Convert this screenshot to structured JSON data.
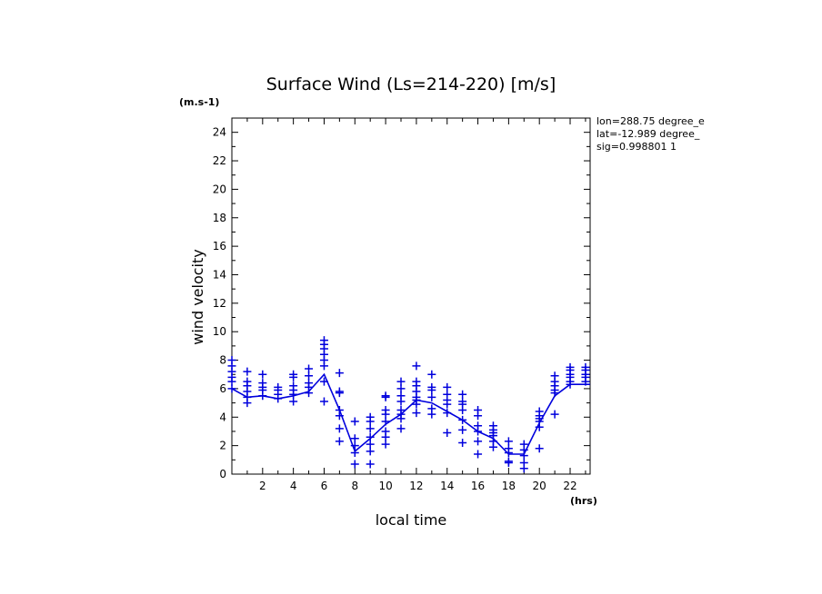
{
  "chart_data": {
    "type": "line",
    "title": "Surface Wind  (Ls=214-220) [m/s]",
    "ylabel": "wind velocity",
    "xlabel": "local time",
    "y_unit": "(m.s-1)",
    "x_unit": "(hrs)",
    "xlim": [
      0,
      23.3
    ],
    "ylim": [
      0,
      25
    ],
    "x_ticks": [
      2,
      4,
      6,
      8,
      10,
      12,
      14,
      16,
      18,
      20,
      22
    ],
    "y_ticks": [
      0,
      2,
      4,
      6,
      8,
      10,
      12,
      14,
      16,
      18,
      20,
      22,
      24
    ],
    "info_lines": [
      "lon=288.75 degree_e",
      "lat=-12.989 degree_",
      "sig=0.998801 1"
    ],
    "mean_series": {
      "x": [
        0,
        1,
        2,
        3,
        4,
        5,
        6,
        7,
        8,
        9,
        10,
        11,
        12,
        13,
        14,
        15,
        16,
        17,
        18,
        19,
        20,
        21,
        22,
        23.3
      ],
      "y": [
        6.0,
        5.4,
        5.5,
        5.3,
        5.5,
        5.8,
        7.0,
        4.5,
        1.6,
        2.5,
        3.5,
        4.2,
        5.2,
        5.0,
        4.4,
        3.8,
        3.0,
        2.5,
        1.4,
        1.4,
        3.6,
        5.5,
        6.3,
        6.3
      ]
    },
    "samples": [
      {
        "x": 0,
        "y": [
          6.0,
          6.5,
          6.8,
          7.2,
          7.6,
          8.0
        ]
      },
      {
        "x": 1,
        "y": [
          5.0,
          5.4,
          5.8,
          6.2,
          6.5,
          7.2
        ]
      },
      {
        "x": 2,
        "y": [
          5.5,
          5.9,
          6.1,
          6.4,
          7.0
        ]
      },
      {
        "x": 3,
        "y": [
          5.3,
          5.6,
          5.9,
          6.1
        ]
      },
      {
        "x": 4,
        "y": [
          5.1,
          5.6,
          5.9,
          6.2,
          6.8,
          7.0
        ]
      },
      {
        "x": 5,
        "y": [
          5.7,
          6.1,
          6.4,
          6.9,
          7.4
        ]
      },
      {
        "x": 6,
        "y": [
          5.1,
          6.5,
          7.6,
          8.0,
          8.4,
          8.8,
          9.1,
          9.4
        ]
      },
      {
        "x": 7,
        "y": [
          2.3,
          3.2,
          4.1,
          4.5,
          5.7,
          5.8,
          7.1
        ]
      },
      {
        "x": 8,
        "y": [
          0.7,
          1.5,
          2.0,
          2.5,
          3.7
        ]
      },
      {
        "x": 9,
        "y": [
          0.7,
          1.6,
          2.1,
          2.6,
          3.2,
          3.7,
          4.0
        ]
      },
      {
        "x": 10,
        "y": [
          2.1,
          2.6,
          3.0,
          3.7,
          4.2,
          4.5,
          5.4,
          5.5
        ]
      },
      {
        "x": 11,
        "y": [
          3.2,
          3.9,
          4.2,
          4.5,
          5.1,
          5.5,
          6.0,
          6.5
        ]
      },
      {
        "x": 12,
        "y": [
          4.3,
          4.9,
          5.2,
          5.4,
          5.8,
          6.2,
          6.5,
          7.6
        ]
      },
      {
        "x": 13,
        "y": [
          4.2,
          4.6,
          5.4,
          5.9,
          6.1,
          7.0
        ]
      },
      {
        "x": 14,
        "y": [
          2.9,
          4.3,
          4.9,
          5.2,
          5.6,
          6.1
        ]
      },
      {
        "x": 15,
        "y": [
          2.2,
          3.1,
          3.8,
          4.5,
          4.9,
          5.1,
          5.6
        ]
      },
      {
        "x": 16,
        "y": [
          1.4,
          2.3,
          3.0,
          3.4,
          4.1,
          4.5
        ]
      },
      {
        "x": 17,
        "y": [
          1.9,
          2.3,
          2.7,
          2.9,
          3.1,
          3.4
        ]
      },
      {
        "x": 18,
        "y": [
          0.8,
          0.9,
          1.5,
          1.8,
          2.3
        ]
      },
      {
        "x": 19,
        "y": [
          0.4,
          0.8,
          1.3,
          1.7,
          2.1
        ]
      },
      {
        "x": 20,
        "y": [
          1.8,
          3.3,
          3.7,
          3.9,
          4.1,
          4.4
        ]
      },
      {
        "x": 21,
        "y": [
          4.2,
          5.7,
          5.9,
          6.2,
          6.5,
          6.9
        ]
      },
      {
        "x": 22,
        "y": [
          6.3,
          6.5,
          6.8,
          7.0,
          7.3,
          7.5
        ]
      },
      {
        "x": 23,
        "y": [
          6.5,
          6.8,
          7.0,
          7.3,
          7.5
        ]
      }
    ],
    "series_color": "#0000dd",
    "grid": false,
    "legend": "none"
  }
}
